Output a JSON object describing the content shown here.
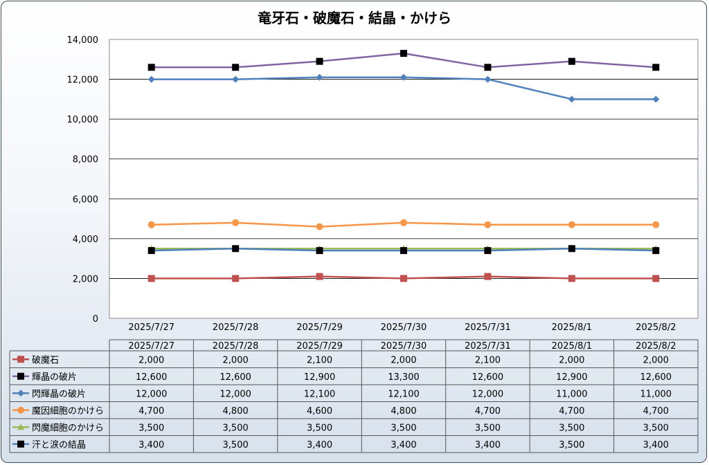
{
  "chart_data": {
    "type": "line",
    "title": "竜牙石・破魔石・結晶・かけら",
    "categories": [
      "2025/7/27",
      "2025/7/28",
      "2025/7/29",
      "2025/7/30",
      "2025/7/31",
      "2025/8/1",
      "2025/8/2"
    ],
    "ylim": [
      0,
      14000
    ],
    "yticks": [
      0,
      2000,
      4000,
      6000,
      8000,
      10000,
      12000,
      14000
    ],
    "ytick_labels": [
      "0",
      "2,000",
      "4,000",
      "6,000",
      "8,000",
      "10,000",
      "12,000",
      "14,000"
    ],
    "grid": true,
    "legend": "data-table-below",
    "series": [
      {
        "name": "破魔石",
        "color": "#c0504d",
        "marker": "square",
        "values": [
          2000,
          2000,
          2100,
          2000,
          2100,
          2000,
          2000
        ],
        "labels": [
          "2,000",
          "2,000",
          "2,100",
          "2,000",
          "2,100",
          "2,000",
          "2,000"
        ]
      },
      {
        "name": "輝晶の破片",
        "color": "#8064a2",
        "marker": "black-square",
        "values": [
          12600,
          12600,
          12900,
          13300,
          12600,
          12900,
          12600
        ],
        "labels": [
          "12,600",
          "12,600",
          "12,900",
          "13,300",
          "12,600",
          "12,900",
          "12,600"
        ]
      },
      {
        "name": "閃輝晶の破片",
        "color": "#4f81bd",
        "marker": "diamond",
        "values": [
          12000,
          12000,
          12100,
          12100,
          12000,
          11000,
          11000
        ],
        "labels": [
          "12,000",
          "12,000",
          "12,100",
          "12,100",
          "12,000",
          "11,000",
          "11,000"
        ]
      },
      {
        "name": "魔因細胞のかけら",
        "color": "#f79646",
        "marker": "circle",
        "values": [
          4700,
          4800,
          4600,
          4800,
          4700,
          4700,
          4700
        ],
        "labels": [
          "4,700",
          "4,800",
          "4,600",
          "4,800",
          "4,700",
          "4,700",
          "4,700"
        ]
      },
      {
        "name": "閃魔細胞のかけら",
        "color": "#9bbb59",
        "marker": "triangle",
        "values": [
          3500,
          3500,
          3500,
          3500,
          3500,
          3500,
          3500
        ],
        "labels": [
          "3,500",
          "3,500",
          "3,500",
          "3,500",
          "3,500",
          "3,500",
          "3,500"
        ]
      },
      {
        "name": "汗と涙の結晶",
        "color": "#4f81bd",
        "marker": "black-square",
        "values": [
          3400,
          3500,
          3400,
          3400,
          3400,
          3500,
          3400
        ],
        "labels": [
          "3,400",
          "3,500",
          "3,400",
          "3,400",
          "3,400",
          "3,500",
          "3,400"
        ]
      }
    ]
  }
}
